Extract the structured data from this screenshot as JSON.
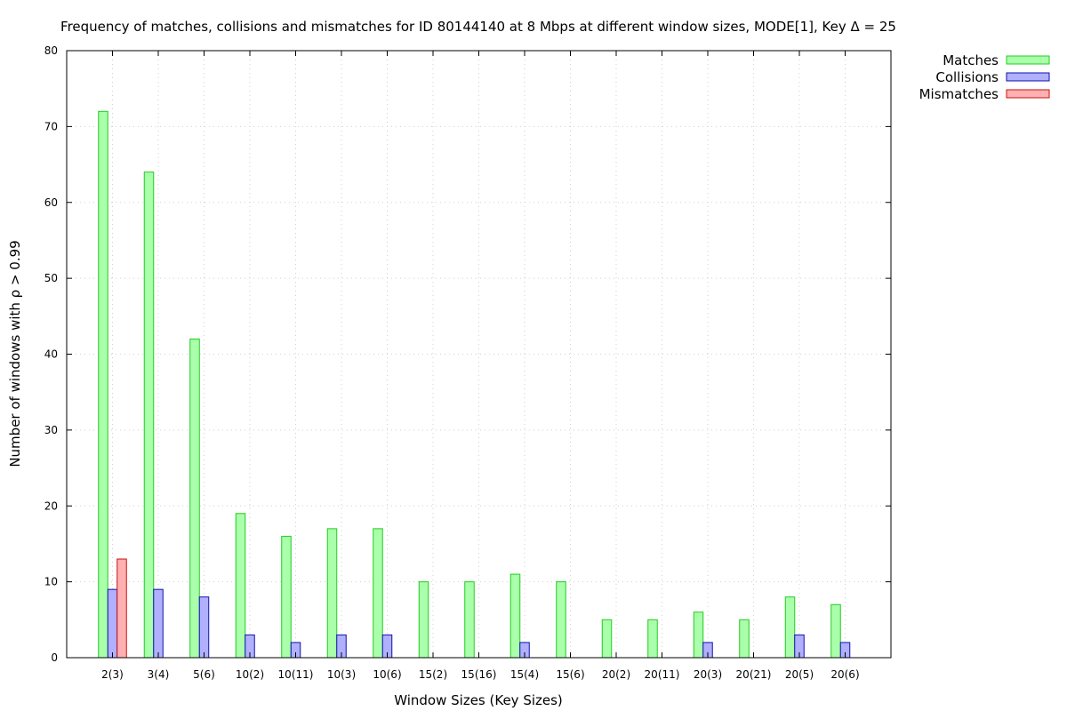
{
  "chart_data": {
    "type": "bar",
    "title": "Frequency of matches, collisions and mismatches for ID 80144140 at 8 Mbps at different window sizes, MODE[1], Key Δ = 25",
    "xlabel": "Window Sizes (Key Sizes)",
    "ylabel": "Number of windows with ρ > 0.99",
    "ylim": [
      0,
      80
    ],
    "yticks": [
      0,
      10,
      20,
      30,
      40,
      50,
      60,
      70,
      80
    ],
    "grid": true,
    "legend_position": "outside-top-right",
    "categories": [
      "2(3)",
      "3(4)",
      "5(6)",
      "10(2)",
      "10(11)",
      "10(3)",
      "10(6)",
      "15(2)",
      "15(16)",
      "15(4)",
      "15(6)",
      "20(2)",
      "20(11)",
      "20(3)",
      "20(21)",
      "20(5)",
      "20(6)"
    ],
    "series": [
      {
        "name": "Matches",
        "fill": "#aaffaa",
        "stroke": "#22cc22",
        "values": [
          72,
          64,
          42,
          19,
          16,
          17,
          17,
          10,
          10,
          11,
          10,
          5,
          5,
          6,
          5,
          8,
          7
        ]
      },
      {
        "name": "Collisions",
        "fill": "#b0b0ff",
        "stroke": "#1111aa",
        "values": [
          9,
          9,
          8,
          3,
          2,
          3,
          3,
          0,
          0,
          2,
          0,
          0,
          0,
          2,
          0,
          3,
          2
        ]
      },
      {
        "name": "Mismatches",
        "fill": "#ffb0b0",
        "stroke": "#cc1111",
        "values": [
          13,
          0,
          0,
          0,
          0,
          0,
          0,
          0,
          0,
          0,
          0,
          0,
          0,
          0,
          0,
          0,
          0
        ]
      }
    ]
  }
}
